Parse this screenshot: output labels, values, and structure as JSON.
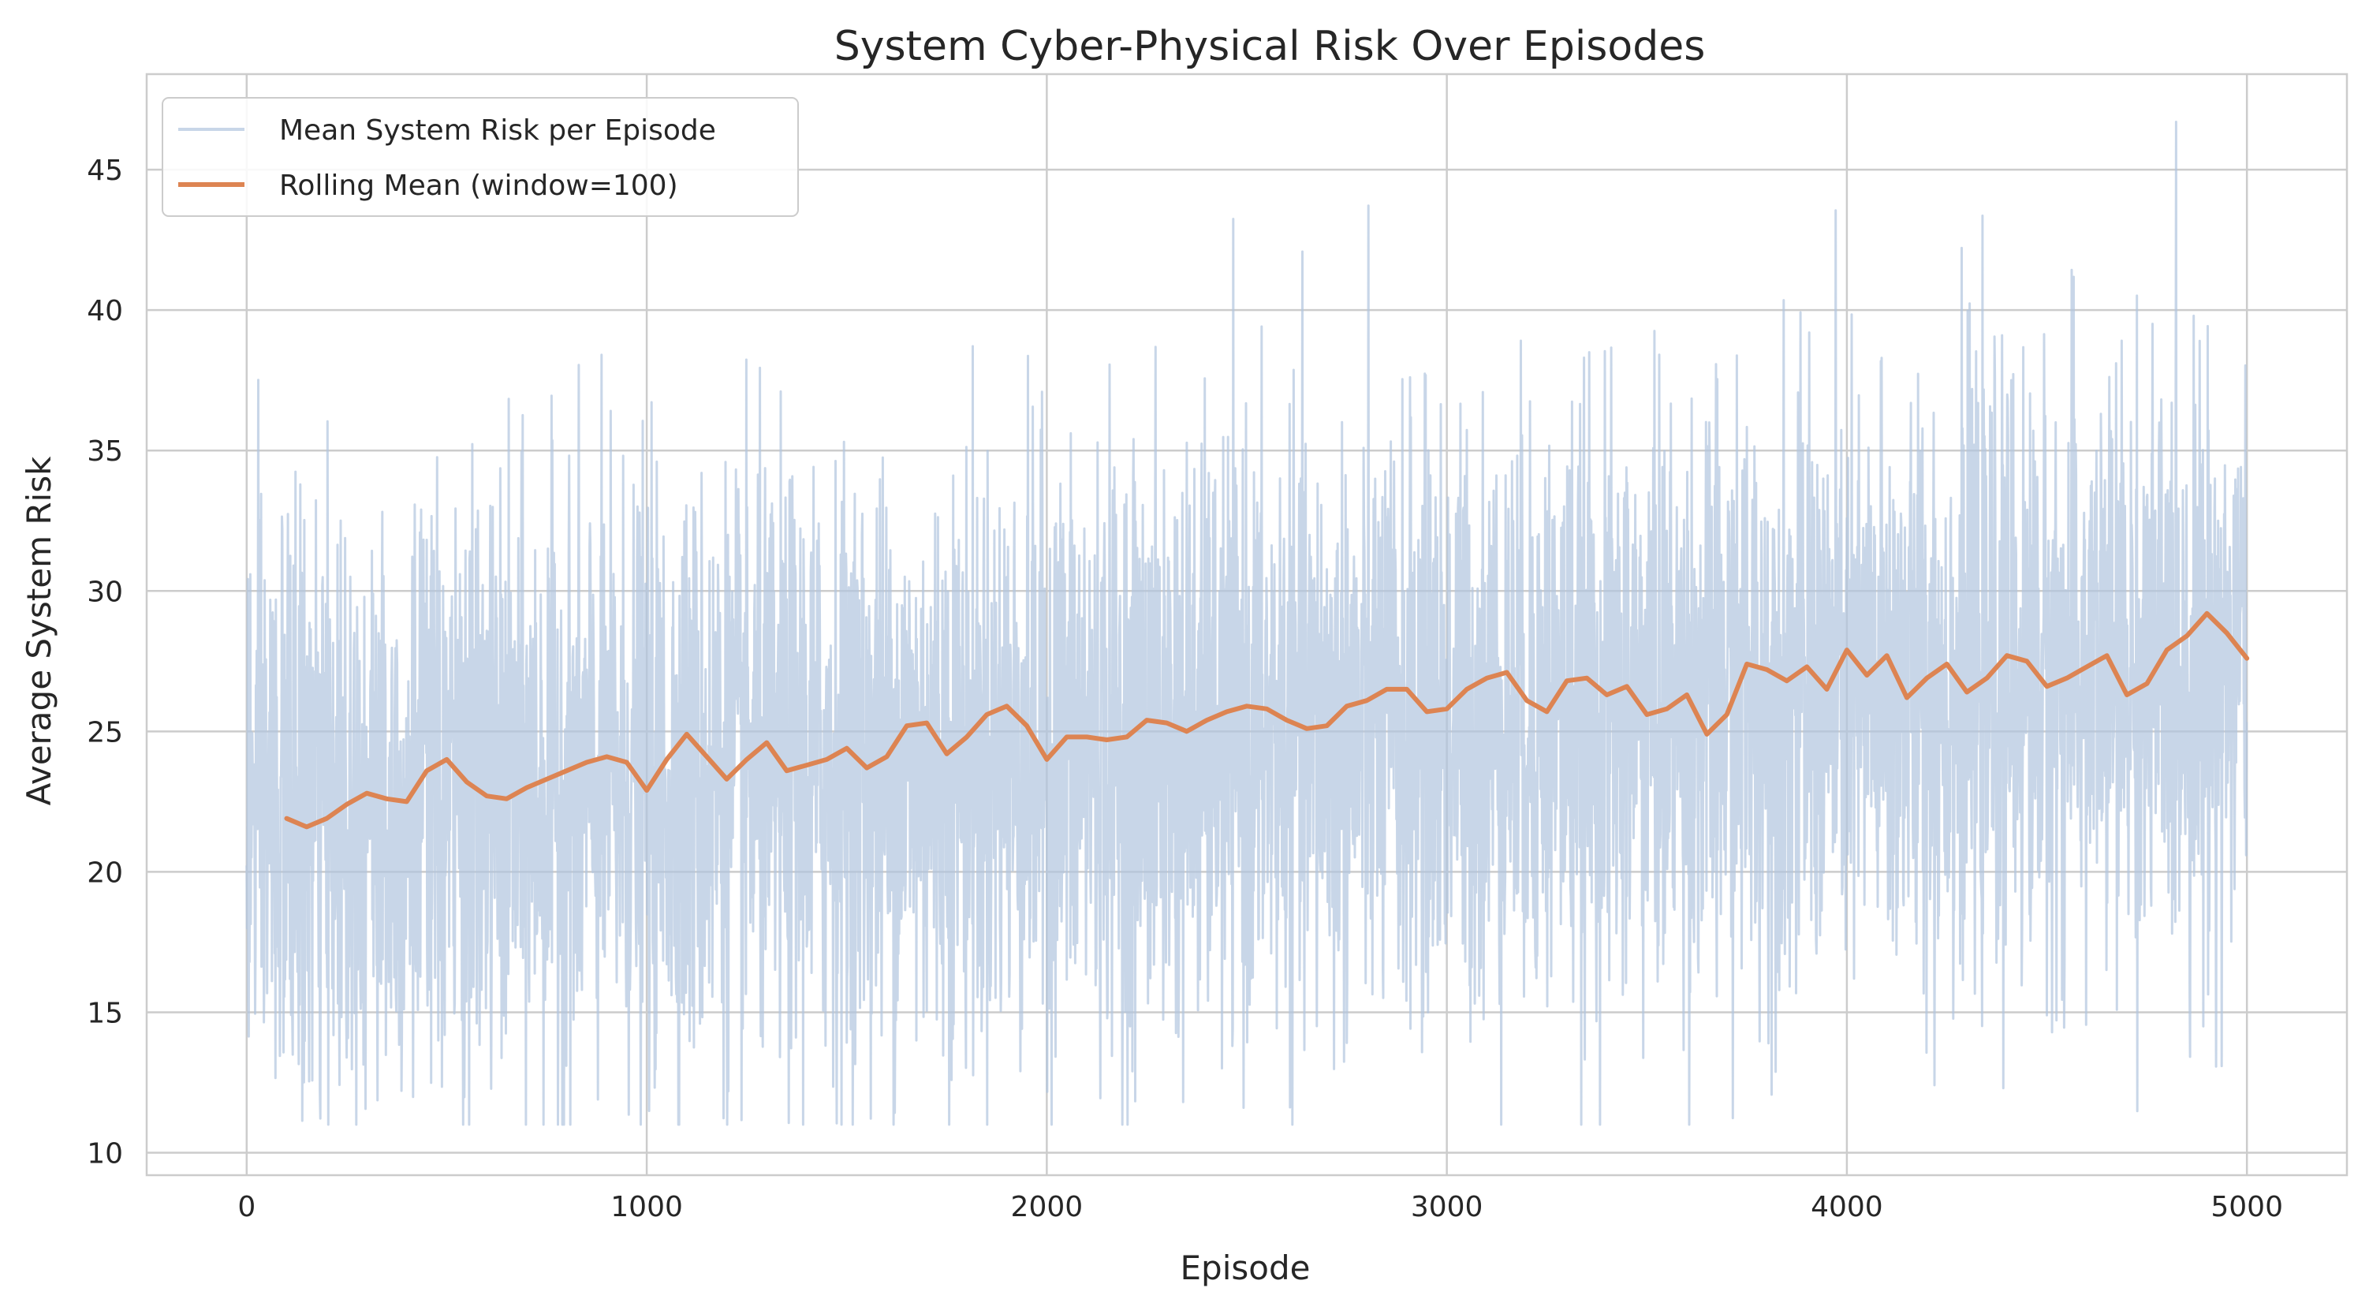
{
  "chart_data": {
    "type": "line",
    "title": "System Cyber-Physical Risk Over Episodes",
    "xlabel": "Episode",
    "ylabel": "Average System Risk",
    "xlim": [
      -250,
      5250
    ],
    "ylim": [
      9.2,
      48.4
    ],
    "xticks": [
      0,
      1000,
      2000,
      3000,
      4000,
      5000
    ],
    "yticks": [
      10,
      15,
      20,
      25,
      30,
      35,
      40,
      45
    ],
    "grid": true,
    "legend_position": "top-left",
    "series": [
      {
        "name": "Mean System Risk per Episode",
        "color": "#b0c4de",
        "opacity": 0.7,
        "generated": true,
        "episodes": [
          0,
          4999
        ],
        "trend_start": 22.0,
        "trend_end": 27.5,
        "noise_sd": 5.2,
        "min": 11.0,
        "max": 46.7
      },
      {
        "name": "Rolling Mean (window=100)",
        "color": "#dd8452",
        "x": [
          100,
          150,
          200,
          250,
          300,
          350,
          400,
          450,
          500,
          550,
          600,
          650,
          700,
          750,
          800,
          850,
          900,
          950,
          1000,
          1050,
          1100,
          1150,
          1200,
          1250,
          1300,
          1350,
          1400,
          1450,
          1500,
          1550,
          1600,
          1650,
          1700,
          1750,
          1800,
          1850,
          1900,
          1950,
          2000,
          2050,
          2100,
          2150,
          2200,
          2250,
          2300,
          2350,
          2400,
          2450,
          2500,
          2550,
          2600,
          2650,
          2700,
          2750,
          2800,
          2850,
          2900,
          2950,
          3000,
          3050,
          3100,
          3150,
          3200,
          3250,
          3300,
          3350,
          3400,
          3450,
          3500,
          3550,
          3600,
          3650,
          3700,
          3750,
          3800,
          3850,
          3900,
          3950,
          4000,
          4050,
          4100,
          4150,
          4200,
          4250,
          4300,
          4350,
          4400,
          4450,
          4500,
          4550,
          4600,
          4650,
          4700,
          4750,
          4800,
          4850,
          4900,
          4950,
          5000
        ],
        "y": [
          21.9,
          21.6,
          21.9,
          22.4,
          22.8,
          22.6,
          22.5,
          23.6,
          24.0,
          23.2,
          22.7,
          22.6,
          23.0,
          23.3,
          23.6,
          23.9,
          24.1,
          23.9,
          22.9,
          24.0,
          24.9,
          24.1,
          23.3,
          24.0,
          24.6,
          23.6,
          23.8,
          24.0,
          24.4,
          23.7,
          24.1,
          25.2,
          25.3,
          24.2,
          24.8,
          25.6,
          25.9,
          25.2,
          24.0,
          24.8,
          24.8,
          24.7,
          24.8,
          25.4,
          25.3,
          25.0,
          25.4,
          25.7,
          25.9,
          25.8,
          25.4,
          25.1,
          25.2,
          25.9,
          26.1,
          26.5,
          26.5,
          25.7,
          25.8,
          26.5,
          26.9,
          27.1,
          26.1,
          25.7,
          26.8,
          26.9,
          26.3,
          26.6,
          25.6,
          25.8,
          26.3,
          24.9,
          25.6,
          27.4,
          27.2,
          26.8,
          27.3,
          26.5,
          27.9,
          27.0,
          27.7,
          26.2,
          26.9,
          27.4,
          26.4,
          26.9,
          27.7,
          27.5,
          26.6,
          26.9,
          27.3,
          27.7,
          26.3,
          26.7,
          27.9,
          28.4,
          29.2,
          28.5,
          27.6
        ]
      }
    ]
  }
}
